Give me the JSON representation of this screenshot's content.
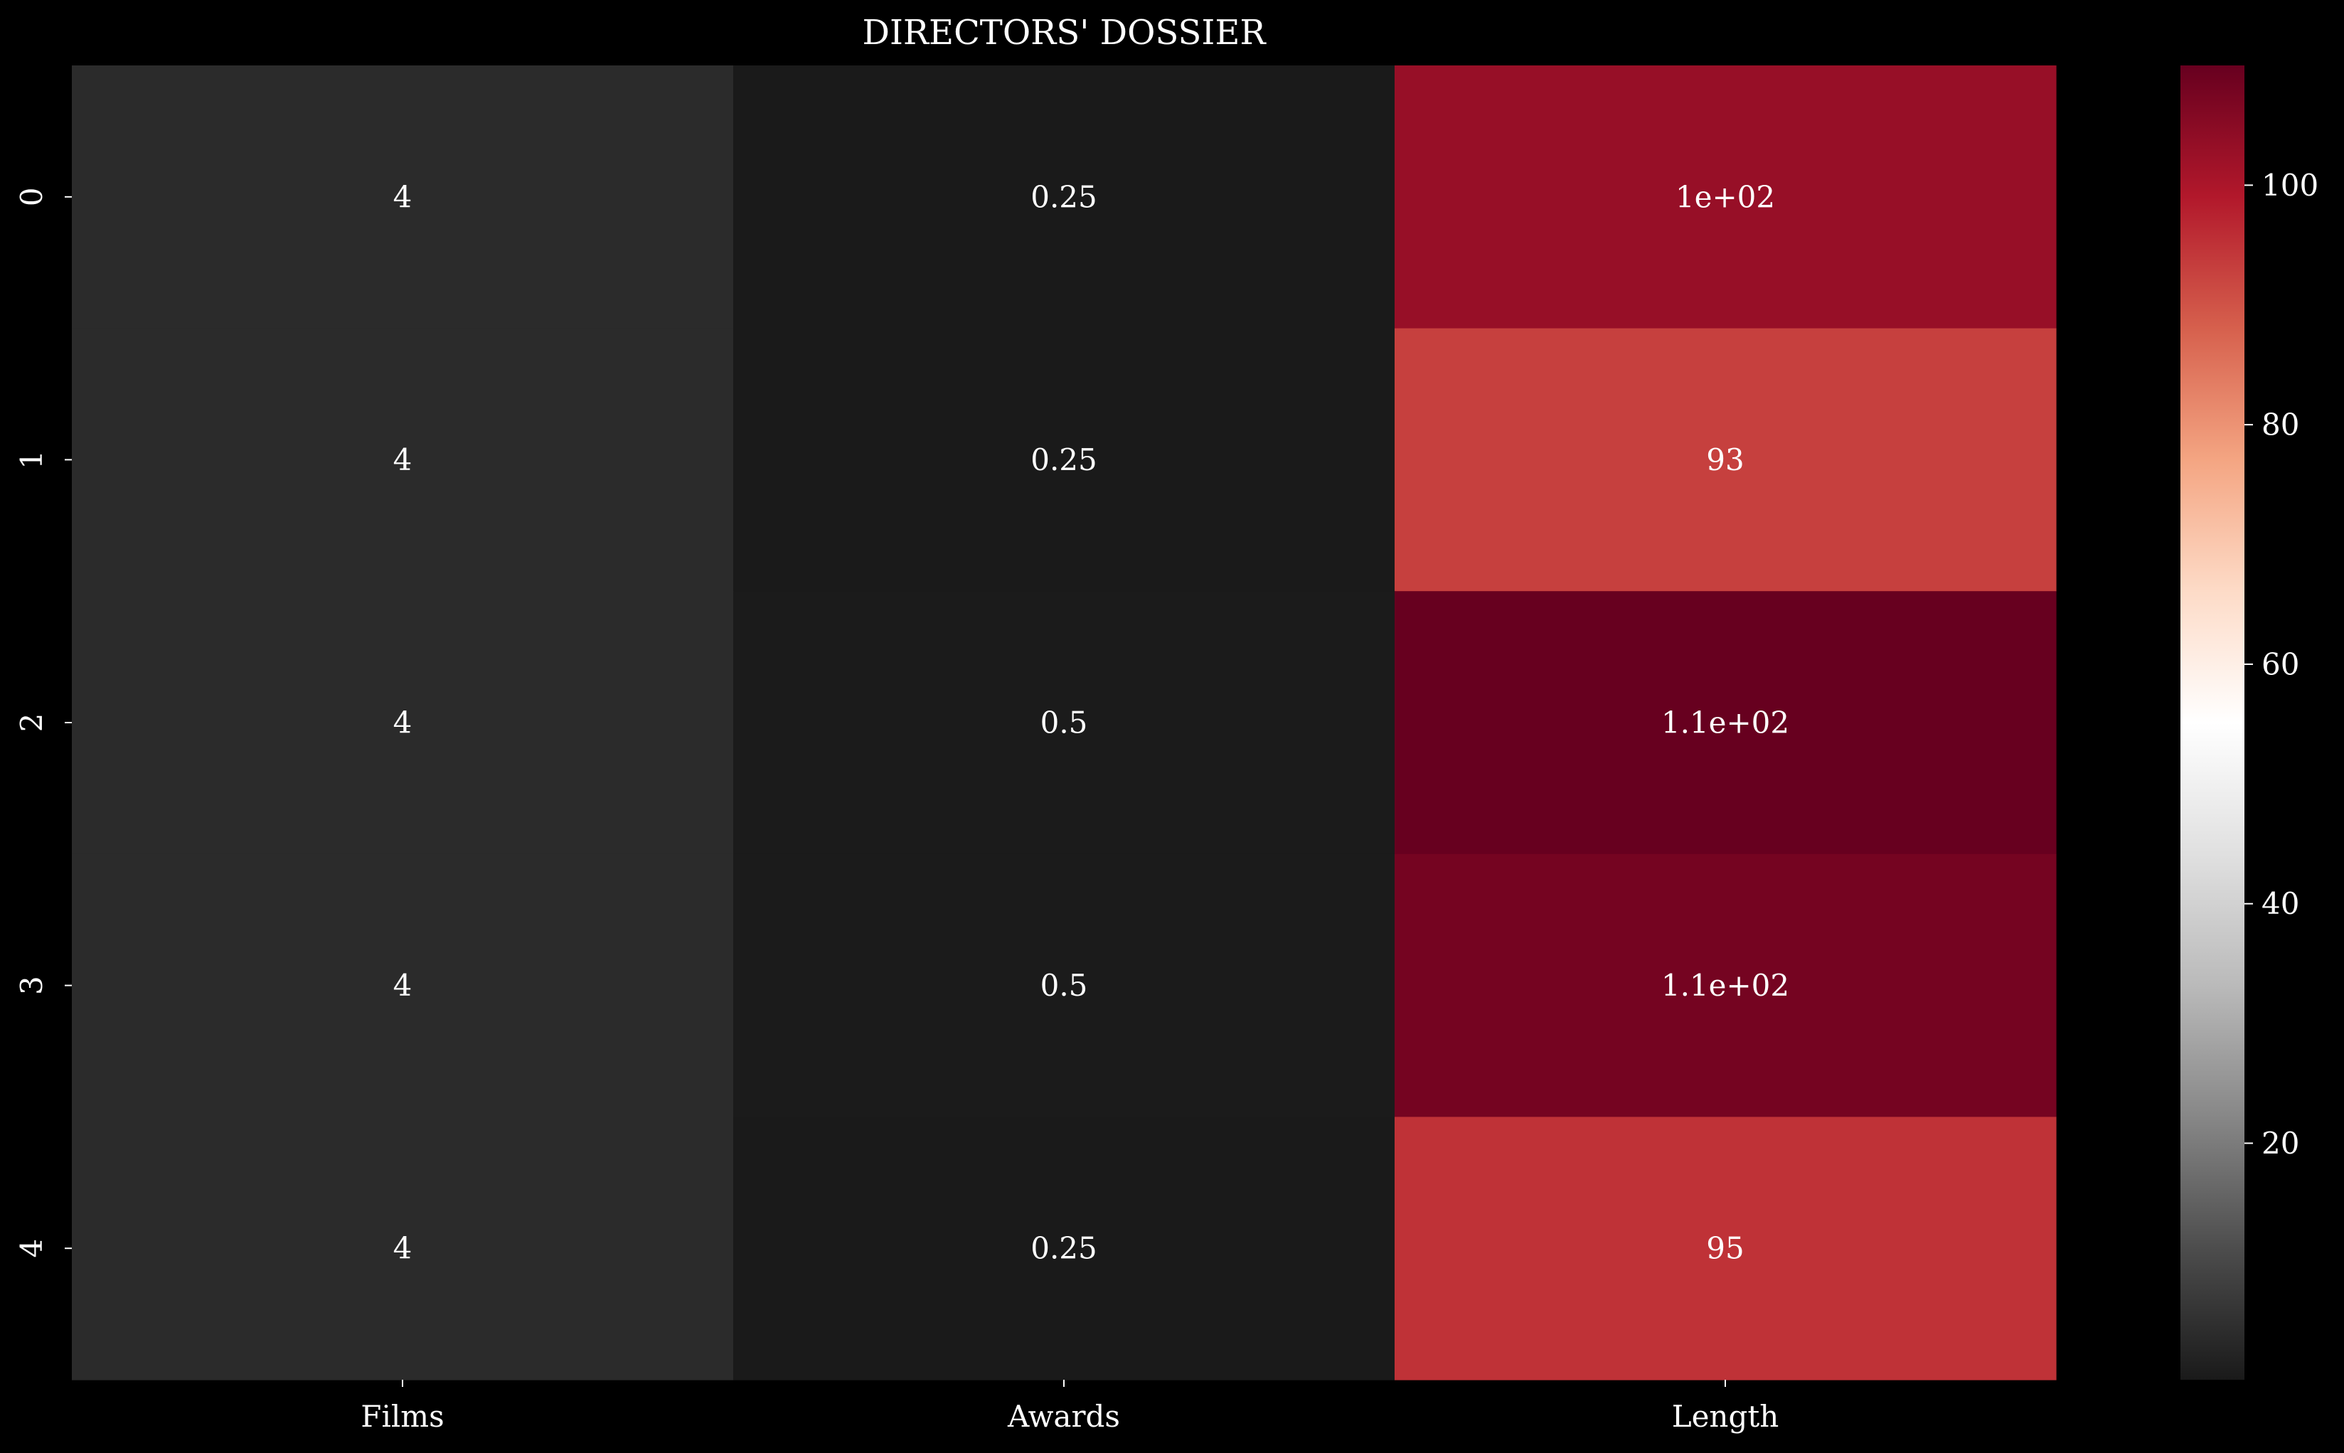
{
  "chart_data": {
    "type": "heatmap",
    "title": "DIRECTORS' DOSSIER",
    "xlabel": "",
    "ylabel": "",
    "columns": [
      "Films",
      "Awards",
      "Length"
    ],
    "rows": [
      "0",
      "1",
      "2",
      "3",
      "4"
    ],
    "values": [
      [
        4,
        0.25,
        103
      ],
      [
        4,
        0.25,
        93
      ],
      [
        4,
        0.5,
        110
      ],
      [
        4,
        0.5,
        108
      ],
      [
        4,
        0.25,
        95
      ]
    ],
    "annotations": [
      [
        "4",
        "0.25",
        "1e+02"
      ],
      [
        "4",
        "0.25",
        "93"
      ],
      [
        "4",
        "0.5",
        "1.1e+02"
      ],
      [
        "4",
        "0.5",
        "1.1e+02"
      ],
      [
        "4",
        "0.25",
        "95"
      ]
    ],
    "colormap": "RdGy_r",
    "vmin": 0.25,
    "vmax": 110,
    "colorbar": {
      "ticks": [
        20,
        40,
        60,
        80,
        100
      ],
      "tick_labels": [
        "20",
        "40",
        "60",
        "80",
        "100"
      ]
    },
    "grid": false,
    "colors": {
      "background": "#000000",
      "text": "#ffffff",
      "colormap_stops": [
        "#1a1a1a",
        "#4d4d4d",
        "#878787",
        "#bababa",
        "#e0e0e0",
        "#ffffff",
        "#fddbc7",
        "#f4a582",
        "#d6604d",
        "#b2182b",
        "#67001f"
      ]
    }
  }
}
